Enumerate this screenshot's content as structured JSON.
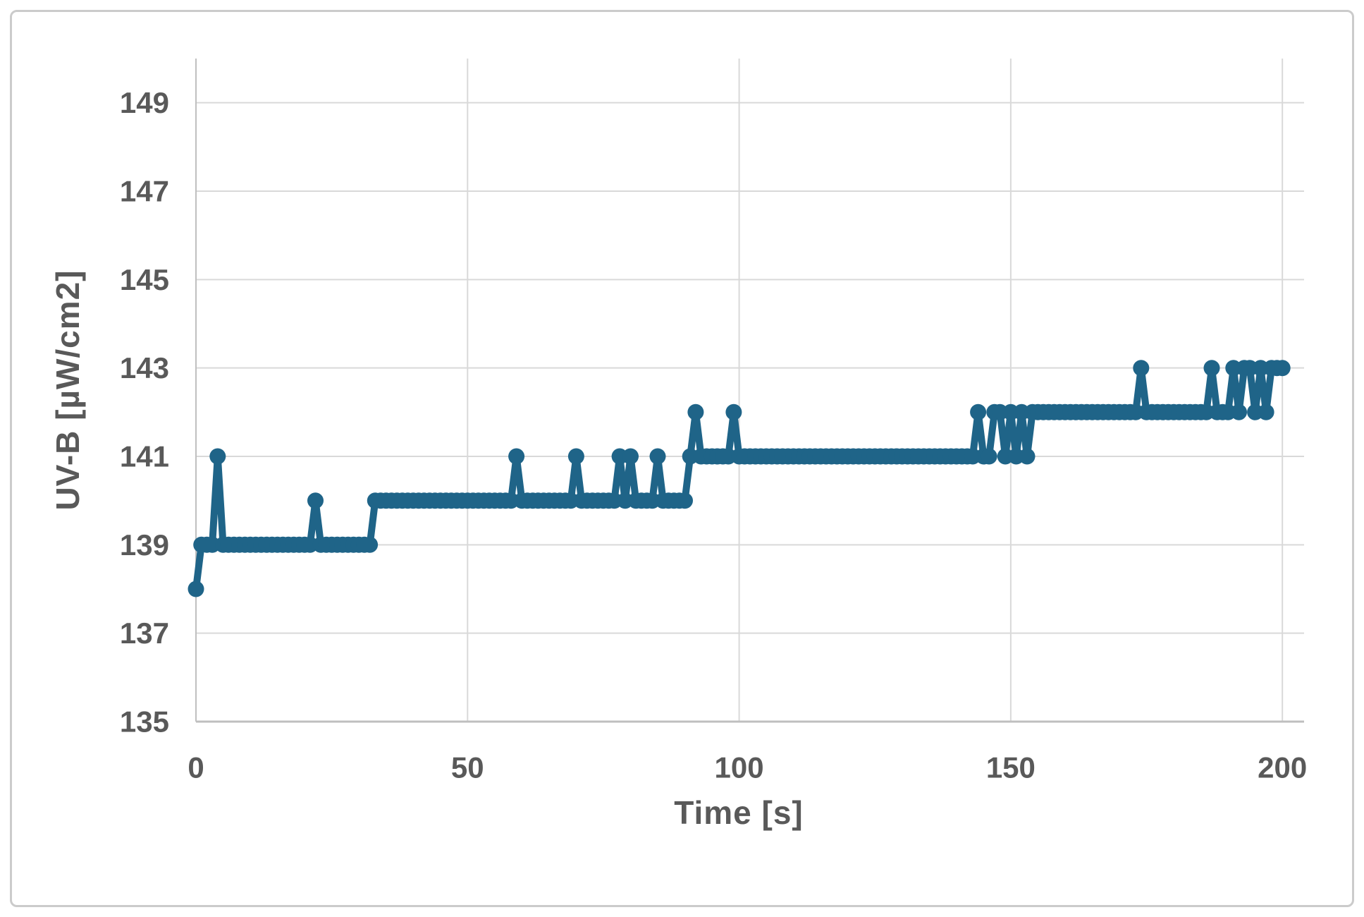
{
  "chart_data": {
    "type": "line",
    "title": "",
    "xlabel": "Time [s]",
    "ylabel": "UV-B [µW/cm2]",
    "xlim": [
      0,
      204
    ],
    "ylim": [
      135,
      150
    ],
    "x_ticks": [
      0,
      50,
      100,
      150,
      200
    ],
    "x_tick_labels": [
      "0",
      "50",
      "100",
      "150",
      "200"
    ],
    "y_ticks": [
      135,
      137,
      139,
      141,
      143,
      145,
      147,
      149
    ],
    "y_tick_labels": [
      "135",
      "137",
      "139",
      "141",
      "143",
      "145",
      "147",
      "149"
    ],
    "grid": true,
    "legend": false,
    "marker": "circle",
    "colors": {
      "series": "#1f6488",
      "gridline": "#d9d9d9",
      "axis_line": "#bfbfbf",
      "label": "#595959",
      "background": "#ffffff",
      "frame_border": "#cbcbcb"
    },
    "series": [
      {
        "x_start": 0,
        "x_step": 1,
        "values": [
          138,
          139,
          139,
          139,
          141,
          139,
          139,
          139,
          139,
          139,
          139,
          139,
          139,
          139,
          139,
          139,
          139,
          139,
          139,
          139,
          139,
          139,
          140,
          139,
          139,
          139,
          139,
          139,
          139,
          139,
          139,
          139,
          139,
          140,
          140,
          140,
          140,
          140,
          140,
          140,
          140,
          140,
          140,
          140,
          140,
          140,
          140,
          140,
          140,
          140,
          140,
          140,
          140,
          140,
          140,
          140,
          140,
          140,
          140,
          141,
          140,
          140,
          140,
          140,
          140,
          140,
          140,
          140,
          140,
          140,
          141,
          140,
          140,
          140,
          140,
          140,
          140,
          140,
          141,
          140,
          141,
          140,
          140,
          140,
          140,
          141,
          140,
          140,
          140,
          140,
          140,
          141,
          142,
          141,
          141,
          141,
          141,
          141,
          141,
          142,
          141,
          141,
          141,
          141,
          141,
          141,
          141,
          141,
          141,
          141,
          141,
          141,
          141,
          141,
          141,
          141,
          141,
          141,
          141,
          141,
          141,
          141,
          141,
          141,
          141,
          141,
          141,
          141,
          141,
          141,
          141,
          141,
          141,
          141,
          141,
          141,
          141,
          141,
          141,
          141,
          141,
          141,
          141,
          141,
          142,
          141,
          141,
          142,
          142,
          141,
          142,
          141,
          142,
          141,
          142,
          142,
          142,
          142,
          142,
          142,
          142,
          142,
          142,
          142,
          142,
          142,
          142,
          142,
          142,
          142,
          142,
          142,
          142,
          142,
          143,
          142,
          142,
          142,
          142,
          142,
          142,
          142,
          142,
          142,
          142,
          142,
          142,
          143,
          142,
          142,
          142,
          143,
          142,
          143,
          143,
          142,
          143,
          142,
          143,
          143,
          143
        ]
      }
    ]
  }
}
